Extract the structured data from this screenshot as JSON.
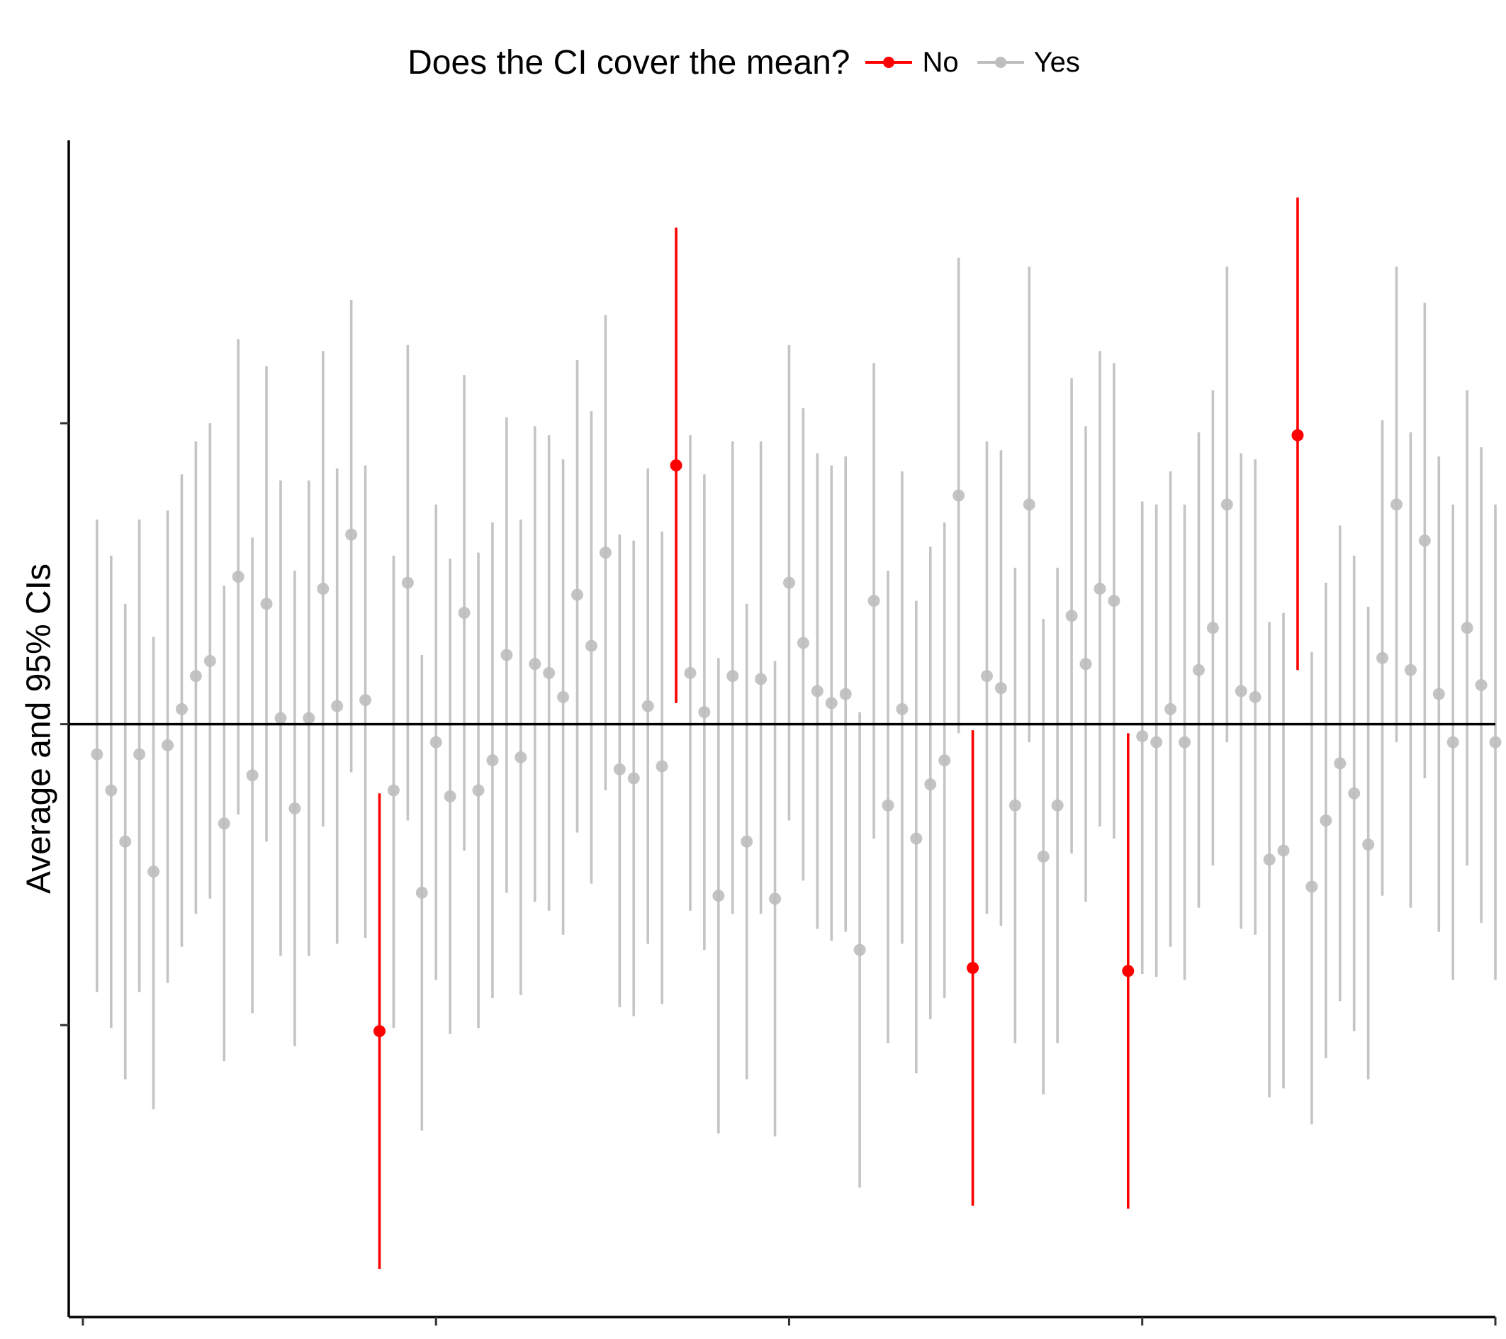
{
  "chart_data": {
    "type": "scatter",
    "title": "",
    "xlabel": "",
    "ylabel": "Average and 95% CIs",
    "legend": {
      "title": "Does the CI cover the mean?",
      "placement": "top",
      "entries": [
        {
          "label": "No",
          "color": "#ff0000"
        },
        {
          "label": "Yes",
          "color": "#bebebe"
        }
      ]
    },
    "reference_line": 0,
    "xlim": [
      -1,
      100
    ],
    "ylim": [
      -1.97,
      1.94
    ],
    "x_tick_labels_shown": false,
    "y_tick_labels_shown": false,
    "grid": false,
    "points": [
      {
        "x": 1,
        "y": -0.1,
        "lo": -0.89,
        "hi": 0.68,
        "covers": "Yes"
      },
      {
        "x": 2,
        "y": -0.22,
        "lo": -1.01,
        "hi": 0.56,
        "covers": "Yes"
      },
      {
        "x": 3,
        "y": -0.39,
        "lo": -1.18,
        "hi": 0.4,
        "covers": "Yes"
      },
      {
        "x": 4,
        "y": -0.1,
        "lo": -0.89,
        "hi": 0.68,
        "covers": "Yes"
      },
      {
        "x": 5,
        "y": -0.49,
        "lo": -1.28,
        "hi": 0.29,
        "covers": "Yes"
      },
      {
        "x": 6,
        "y": -0.07,
        "lo": -0.86,
        "hi": 0.71,
        "covers": "Yes"
      },
      {
        "x": 7,
        "y": 0.05,
        "lo": -0.74,
        "hi": 0.83,
        "covers": "Yes"
      },
      {
        "x": 8,
        "y": 0.16,
        "lo": -0.63,
        "hi": 0.94,
        "covers": "Yes"
      },
      {
        "x": 9,
        "y": 0.21,
        "lo": -0.58,
        "hi": 1.0,
        "covers": "Yes"
      },
      {
        "x": 10,
        "y": -0.33,
        "lo": -1.12,
        "hi": 0.46,
        "covers": "Yes"
      },
      {
        "x": 11,
        "y": 0.49,
        "lo": -0.3,
        "hi": 1.28,
        "covers": "Yes"
      },
      {
        "x": 12,
        "y": -0.17,
        "lo": -0.96,
        "hi": 0.62,
        "covers": "Yes"
      },
      {
        "x": 13,
        "y": 0.4,
        "lo": -0.39,
        "hi": 1.19,
        "covers": "Yes"
      },
      {
        "x": 14,
        "y": 0.02,
        "lo": -0.77,
        "hi": 0.81,
        "covers": "Yes"
      },
      {
        "x": 15,
        "y": -0.28,
        "lo": -1.07,
        "hi": 0.51,
        "covers": "Yes"
      },
      {
        "x": 16,
        "y": 0.02,
        "lo": -0.77,
        "hi": 0.81,
        "covers": "Yes"
      },
      {
        "x": 17,
        "y": 0.45,
        "lo": -0.34,
        "hi": 1.24,
        "covers": "Yes"
      },
      {
        "x": 18,
        "y": 0.06,
        "lo": -0.73,
        "hi": 0.85,
        "covers": "Yes"
      },
      {
        "x": 19,
        "y": 0.63,
        "lo": -0.16,
        "hi": 1.41,
        "covers": "Yes"
      },
      {
        "x": 20,
        "y": 0.08,
        "lo": -0.71,
        "hi": 0.86,
        "covers": "Yes"
      },
      {
        "x": 21,
        "y": -1.02,
        "lo": -1.81,
        "hi": -0.23,
        "covers": "No"
      },
      {
        "x": 22,
        "y": -0.22,
        "lo": -1.01,
        "hi": 0.56,
        "covers": "Yes"
      },
      {
        "x": 23,
        "y": 0.47,
        "lo": -0.32,
        "hi": 1.26,
        "covers": "Yes"
      },
      {
        "x": 24,
        "y": -0.56,
        "lo": -1.35,
        "hi": 0.23,
        "covers": "Yes"
      },
      {
        "x": 25,
        "y": -0.06,
        "lo": -0.85,
        "hi": 0.73,
        "covers": "Yes"
      },
      {
        "x": 26,
        "y": -0.24,
        "lo": -1.03,
        "hi": 0.55,
        "covers": "Yes"
      },
      {
        "x": 27,
        "y": 0.37,
        "lo": -0.42,
        "hi": 1.16,
        "covers": "Yes"
      },
      {
        "x": 28,
        "y": -0.22,
        "lo": -1.01,
        "hi": 0.57,
        "covers": "Yes"
      },
      {
        "x": 29,
        "y": -0.12,
        "lo": -0.91,
        "hi": 0.67,
        "covers": "Yes"
      },
      {
        "x": 30,
        "y": 0.23,
        "lo": -0.56,
        "hi": 1.02,
        "covers": "Yes"
      },
      {
        "x": 31,
        "y": -0.11,
        "lo": -0.9,
        "hi": 0.68,
        "covers": "Yes"
      },
      {
        "x": 32,
        "y": 0.2,
        "lo": -0.59,
        "hi": 0.99,
        "covers": "Yes"
      },
      {
        "x": 33,
        "y": 0.17,
        "lo": -0.62,
        "hi": 0.96,
        "covers": "Yes"
      },
      {
        "x": 34,
        "y": 0.09,
        "lo": -0.7,
        "hi": 0.88,
        "covers": "Yes"
      },
      {
        "x": 35,
        "y": 0.43,
        "lo": -0.36,
        "hi": 1.21,
        "covers": "Yes"
      },
      {
        "x": 36,
        "y": 0.26,
        "lo": -0.53,
        "hi": 1.04,
        "covers": "Yes"
      },
      {
        "x": 37,
        "y": 0.57,
        "lo": -0.22,
        "hi": 1.36,
        "covers": "Yes"
      },
      {
        "x": 38,
        "y": -0.15,
        "lo": -0.94,
        "hi": 0.63,
        "covers": "Yes"
      },
      {
        "x": 39,
        "y": -0.18,
        "lo": -0.97,
        "hi": 0.61,
        "covers": "Yes"
      },
      {
        "x": 40,
        "y": 0.06,
        "lo": -0.73,
        "hi": 0.85,
        "covers": "Yes"
      },
      {
        "x": 41,
        "y": -0.14,
        "lo": -0.93,
        "hi": 0.64,
        "covers": "Yes"
      },
      {
        "x": 42,
        "y": 0.86,
        "lo": 0.07,
        "hi": 1.65,
        "covers": "No"
      },
      {
        "x": 43,
        "y": 0.17,
        "lo": -0.62,
        "hi": 0.96,
        "covers": "Yes"
      },
      {
        "x": 44,
        "y": 0.04,
        "lo": -0.75,
        "hi": 0.83,
        "covers": "Yes"
      },
      {
        "x": 45,
        "y": -0.57,
        "lo": -1.36,
        "hi": 0.22,
        "covers": "Yes"
      },
      {
        "x": 46,
        "y": 0.16,
        "lo": -0.63,
        "hi": 0.94,
        "covers": "Yes"
      },
      {
        "x": 47,
        "y": -0.39,
        "lo": -1.18,
        "hi": 0.4,
        "covers": "Yes"
      },
      {
        "x": 48,
        "y": 0.15,
        "lo": -0.63,
        "hi": 0.94,
        "covers": "Yes"
      },
      {
        "x": 49,
        "y": -0.58,
        "lo": -1.37,
        "hi": 0.21,
        "covers": "Yes"
      },
      {
        "x": 50,
        "y": 0.47,
        "lo": -0.32,
        "hi": 1.26,
        "covers": "Yes"
      },
      {
        "x": 51,
        "y": 0.27,
        "lo": -0.52,
        "hi": 1.05,
        "covers": "Yes"
      },
      {
        "x": 52,
        "y": 0.11,
        "lo": -0.68,
        "hi": 0.9,
        "covers": "Yes"
      },
      {
        "x": 53,
        "y": 0.07,
        "lo": -0.72,
        "hi": 0.86,
        "covers": "Yes"
      },
      {
        "x": 54,
        "y": 0.1,
        "lo": -0.69,
        "hi": 0.89,
        "covers": "Yes"
      },
      {
        "x": 55,
        "y": -0.75,
        "lo": -1.54,
        "hi": 0.04,
        "covers": "Yes"
      },
      {
        "x": 56,
        "y": 0.41,
        "lo": -0.38,
        "hi": 1.2,
        "covers": "Yes"
      },
      {
        "x": 57,
        "y": -0.27,
        "lo": -1.06,
        "hi": 0.51,
        "covers": "Yes"
      },
      {
        "x": 58,
        "y": 0.05,
        "lo": -0.73,
        "hi": 0.84,
        "covers": "Yes"
      },
      {
        "x": 59,
        "y": -0.38,
        "lo": -1.16,
        "hi": 0.41,
        "covers": "Yes"
      },
      {
        "x": 60,
        "y": -0.2,
        "lo": -0.98,
        "hi": 0.59,
        "covers": "Yes"
      },
      {
        "x": 61,
        "y": -0.12,
        "lo": -0.91,
        "hi": 0.67,
        "covers": "Yes"
      },
      {
        "x": 62,
        "y": 0.76,
        "lo": -0.03,
        "hi": 1.55,
        "covers": "Yes"
      },
      {
        "x": 63,
        "y": -0.81,
        "lo": -1.6,
        "hi": -0.02,
        "covers": "No"
      },
      {
        "x": 64,
        "y": 0.16,
        "lo": -0.63,
        "hi": 0.94,
        "covers": "Yes"
      },
      {
        "x": 65,
        "y": 0.12,
        "lo": -0.67,
        "hi": 0.91,
        "covers": "Yes"
      },
      {
        "x": 66,
        "y": -0.27,
        "lo": -1.06,
        "hi": 0.52,
        "covers": "Yes"
      },
      {
        "x": 67,
        "y": 0.73,
        "lo": -0.06,
        "hi": 1.52,
        "covers": "Yes"
      },
      {
        "x": 68,
        "y": -0.44,
        "lo": -1.23,
        "hi": 0.35,
        "covers": "Yes"
      },
      {
        "x": 69,
        "y": -0.27,
        "lo": -1.06,
        "hi": 0.52,
        "covers": "Yes"
      },
      {
        "x": 70,
        "y": 0.36,
        "lo": -0.43,
        "hi": 1.15,
        "covers": "Yes"
      },
      {
        "x": 71,
        "y": 0.2,
        "lo": -0.59,
        "hi": 0.99,
        "covers": "Yes"
      },
      {
        "x": 72,
        "y": 0.45,
        "lo": -0.34,
        "hi": 1.24,
        "covers": "Yes"
      },
      {
        "x": 73,
        "y": 0.41,
        "lo": -0.38,
        "hi": 1.2,
        "covers": "Yes"
      },
      {
        "x": 74,
        "y": -0.82,
        "lo": -1.61,
        "hi": -0.03,
        "covers": "No"
      },
      {
        "x": 75,
        "y": -0.04,
        "lo": -0.83,
        "hi": 0.74,
        "covers": "Yes"
      },
      {
        "x": 76,
        "y": -0.06,
        "lo": -0.84,
        "hi": 0.73,
        "covers": "Yes"
      },
      {
        "x": 77,
        "y": 0.05,
        "lo": -0.74,
        "hi": 0.84,
        "covers": "Yes"
      },
      {
        "x": 78,
        "y": -0.06,
        "lo": -0.85,
        "hi": 0.73,
        "covers": "Yes"
      },
      {
        "x": 79,
        "y": 0.18,
        "lo": -0.61,
        "hi": 0.97,
        "covers": "Yes"
      },
      {
        "x": 80,
        "y": 0.32,
        "lo": -0.47,
        "hi": 1.11,
        "covers": "Yes"
      },
      {
        "x": 81,
        "y": 0.73,
        "lo": -0.06,
        "hi": 1.52,
        "covers": "Yes"
      },
      {
        "x": 82,
        "y": 0.11,
        "lo": -0.68,
        "hi": 0.9,
        "covers": "Yes"
      },
      {
        "x": 83,
        "y": 0.09,
        "lo": -0.7,
        "hi": 0.88,
        "covers": "Yes"
      },
      {
        "x": 84,
        "y": -0.45,
        "lo": -1.24,
        "hi": 0.34,
        "covers": "Yes"
      },
      {
        "x": 85,
        "y": -0.42,
        "lo": -1.21,
        "hi": 0.37,
        "covers": "Yes"
      },
      {
        "x": 86,
        "y": 0.96,
        "lo": 0.18,
        "hi": 1.75,
        "covers": "No"
      },
      {
        "x": 87,
        "y": -0.54,
        "lo": -1.33,
        "hi": 0.24,
        "covers": "Yes"
      },
      {
        "x": 88,
        "y": -0.32,
        "lo": -1.11,
        "hi": 0.47,
        "covers": "Yes"
      },
      {
        "x": 89,
        "y": -0.13,
        "lo": -0.92,
        "hi": 0.66,
        "covers": "Yes"
      },
      {
        "x": 90,
        "y": -0.23,
        "lo": -1.02,
        "hi": 0.56,
        "covers": "Yes"
      },
      {
        "x": 91,
        "y": -0.4,
        "lo": -1.18,
        "hi": 0.39,
        "covers": "Yes"
      },
      {
        "x": 92,
        "y": 0.22,
        "lo": -0.57,
        "hi": 1.01,
        "covers": "Yes"
      },
      {
        "x": 93,
        "y": 0.73,
        "lo": -0.06,
        "hi": 1.52,
        "covers": "Yes"
      },
      {
        "x": 94,
        "y": 0.18,
        "lo": -0.61,
        "hi": 0.97,
        "covers": "Yes"
      },
      {
        "x": 95,
        "y": 0.61,
        "lo": -0.18,
        "hi": 1.4,
        "covers": "Yes"
      },
      {
        "x": 96,
        "y": 0.1,
        "lo": -0.69,
        "hi": 0.89,
        "covers": "Yes"
      },
      {
        "x": 97,
        "y": -0.06,
        "lo": -0.85,
        "hi": 0.73,
        "covers": "Yes"
      },
      {
        "x": 98,
        "y": 0.32,
        "lo": -0.47,
        "hi": 1.11,
        "covers": "Yes"
      },
      {
        "x": 99,
        "y": 0.13,
        "lo": -0.66,
        "hi": 0.92,
        "covers": "Yes"
      },
      {
        "x": 100,
        "y": -0.06,
        "lo": -0.85,
        "hi": 0.73,
        "covers": "Yes"
      }
    ]
  }
}
